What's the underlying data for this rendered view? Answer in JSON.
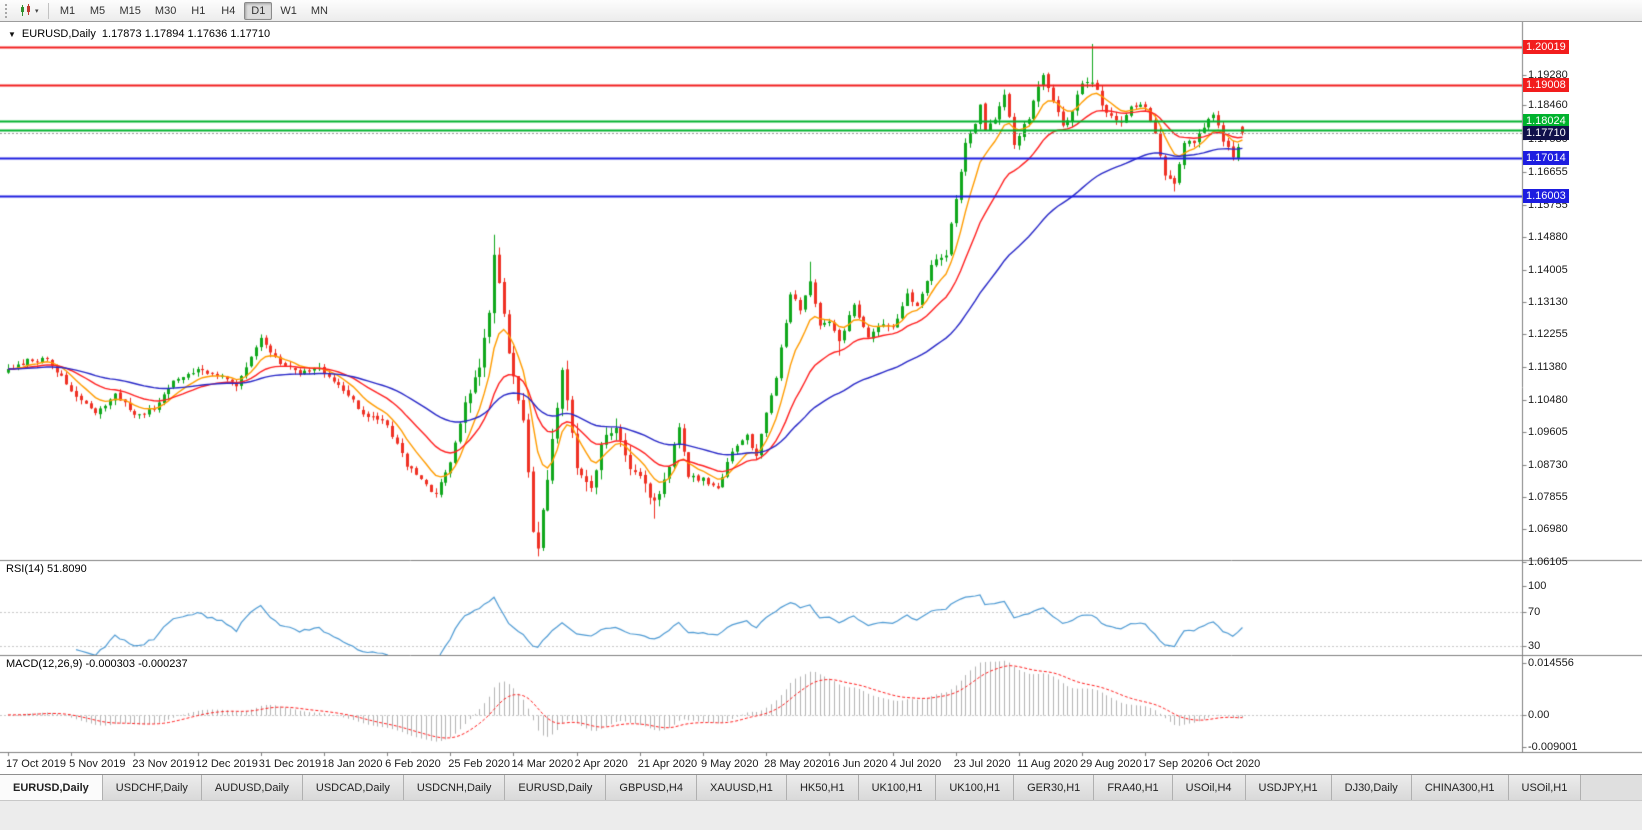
{
  "toolbar": {
    "periods": [
      "M1",
      "M5",
      "M15",
      "M30",
      "H1",
      "H4",
      "D1",
      "W1",
      "MN"
    ],
    "active_period": "D1"
  },
  "chart": {
    "symbol_period": "EURUSD,Daily",
    "ohlc_line": "1.17873 1.17894 1.17636 1.17710"
  },
  "chart_data": {
    "type": "candlestick",
    "symbol": "EURUSD",
    "timeframe": "Daily",
    "open": 1.17873,
    "high": 1.17894,
    "low": 1.17636,
    "close": 1.1771,
    "candle_count": 255,
    "price_anchors": [
      [
        0,
        1.113
      ],
      [
        4,
        1.1155
      ],
      [
        8,
        1.116
      ],
      [
        13,
        1.1075
      ],
      [
        18,
        1.101
      ],
      [
        22,
        1.1065
      ],
      [
        26,
        1.1012
      ],
      [
        30,
        1.102
      ],
      [
        34,
        1.11
      ],
      [
        39,
        1.113
      ],
      [
        43,
        1.1118
      ],
      [
        47,
        1.1085
      ],
      [
        52,
        1.1212
      ],
      [
        55,
        1.116
      ],
      [
        60,
        1.1118
      ],
      [
        64,
        1.1135
      ],
      [
        68,
        1.109
      ],
      [
        73,
        1.1012
      ],
      [
        78,
        1.0982
      ],
      [
        82,
        1.0872
      ],
      [
        88,
        1.079
      ],
      [
        91,
        1.0882
      ],
      [
        94,
        1.103
      ],
      [
        97,
        1.1135
      ],
      [
        99,
        1.1284
      ],
      [
        100,
        1.1448
      ],
      [
        102,
        1.127
      ],
      [
        104,
        1.1105
      ],
      [
        106,
        1.0995
      ],
      [
        108,
        1.07
      ],
      [
        109,
        1.0655
      ],
      [
        111,
        1.0832
      ],
      [
        113,
        1.1035
      ],
      [
        114,
        1.114
      ],
      [
        117,
        1.0862
      ],
      [
        120,
        1.0802
      ],
      [
        122,
        1.093
      ],
      [
        125,
        1.0978
      ],
      [
        128,
        1.0872
      ],
      [
        130,
        1.0842
      ],
      [
        133,
        1.0772
      ],
      [
        136,
        1.0872
      ],
      [
        138,
        1.0978
      ],
      [
        140,
        1.0843
      ],
      [
        143,
        1.0832
      ],
      [
        146,
        1.0812
      ],
      [
        149,
        1.0912
      ],
      [
        152,
        1.0952
      ],
      [
        154,
        1.0896
      ],
      [
        156,
        1.101
      ],
      [
        158,
        1.111
      ],
      [
        161,
        1.1337
      ],
      [
        163,
        1.1295
      ],
      [
        165,
        1.1373
      ],
      [
        167,
        1.1255
      ],
      [
        169,
        1.1265
      ],
      [
        171,
        1.1205
      ],
      [
        174,
        1.1305
      ],
      [
        177,
        1.1218
      ],
      [
        180,
        1.125
      ],
      [
        182,
        1.1248
      ],
      [
        185,
        1.133
      ],
      [
        187,
        1.13
      ],
      [
        190,
        1.141
      ],
      [
        193,
        1.1445
      ],
      [
        195,
        1.1595
      ],
      [
        197,
        1.175
      ],
      [
        199,
        1.179
      ],
      [
        200,
        1.1845
      ],
      [
        201,
        1.1778
      ],
      [
        203,
        1.18
      ],
      [
        205,
        1.1876
      ],
      [
        207,
        1.1738
      ],
      [
        210,
        1.1813
      ],
      [
        213,
        1.193
      ],
      [
        215,
        1.1855
      ],
      [
        217,
        1.179
      ],
      [
        219,
        1.1832
      ],
      [
        221,
        1.1903
      ],
      [
        223,
        1.1911
      ],
      [
        225,
        1.185
      ],
      [
        227,
        1.1815
      ],
      [
        229,
        1.1801
      ],
      [
        231,
        1.1846
      ],
      [
        234,
        1.1845
      ],
      [
        236,
        1.1772
      ],
      [
        238,
        1.166
      ],
      [
        240,
        1.163
      ],
      [
        242,
        1.1742
      ],
      [
        244,
        1.1748
      ],
      [
        246,
        1.1784
      ],
      [
        248,
        1.1826
      ],
      [
        250,
        1.1745
      ],
      [
        252,
        1.1708
      ],
      [
        254,
        1.1771
      ]
    ],
    "noise_profile": [
      {
        "from": 0,
        "to": 93,
        "amp": 0.0016
      },
      {
        "from": 94,
        "to": 135,
        "amp": 0.0034
      },
      {
        "from": 136,
        "to": 178,
        "amp": 0.0016
      },
      {
        "from": 179,
        "to": 254,
        "amp": 0.0019
      }
    ],
    "wick_extremes": [
      {
        "day": 100,
        "high": 1.1495
      },
      {
        "day": 109,
        "low": 1.0625
      },
      {
        "day": 133,
        "low": 1.0727
      },
      {
        "day": 165,
        "high": 1.1422
      },
      {
        "day": 171,
        "low": 1.1168
      },
      {
        "day": 223,
        "high": 1.2011
      },
      {
        "day": 240,
        "low": 1.1612
      }
    ],
    "y_axis_ticks": [
      "1.19280",
      "1.18460",
      "1.17530",
      "1.16655",
      "1.15755",
      "1.14880",
      "1.14005",
      "1.13130",
      "1.12255",
      "1.11380",
      "1.10480",
      "1.09605",
      "1.08730",
      "1.07855",
      "1.06980",
      "1.06105"
    ],
    "x_axis_dates": [
      "17 Oct 2019",
      "5 Nov 2019",
      "23 Nov 2019",
      "12 Dec 2019",
      "31 Dec 2019",
      "18 Jan 2020",
      "6 Feb 2020",
      "25 Feb 2020",
      "14 Mar 2020",
      "2 Apr 2020",
      "21 Apr 2020",
      "9 May 2020",
      "28 May 2020",
      "16 Jun 2020",
      "4 Jul 2020",
      "23 Jul 2020",
      "11 Aug 2020",
      "29 Aug 2020",
      "17 Sep 2020",
      "6 Oct 2020"
    ],
    "horizontal_lines": [
      {
        "price": 1.20019,
        "color": "#f21d1d",
        "label": "1.20019"
      },
      {
        "price": 1.19008,
        "color": "#f21d1d",
        "label": "1.19008"
      },
      {
        "price": 1.18024,
        "color": "#00b22d",
        "label": "1.18024"
      },
      {
        "price": 1.1779,
        "color": "#00b22d",
        "label": ""
      },
      {
        "price": 1.17014,
        "color": "#1d1de0",
        "label": "1.17014"
      },
      {
        "price": 1.16003,
        "color": "#1d1de0",
        "label": "1.16003"
      }
    ],
    "bid": {
      "price": 1.1771,
      "label": "1.17710",
      "tag_color": "#10104a"
    },
    "candle_colors": {
      "up": "#10a81c",
      "down": "#ef3124"
    },
    "moving_averages": [
      {
        "period": 8,
        "color": "#ff9c00"
      },
      {
        "period": 20,
        "color": "#ff2020"
      },
      {
        "period": 50,
        "color": "#2828c8"
      }
    ],
    "rsi": {
      "label": "RSI(14)",
      "value_text": "51.8090",
      "period": 14,
      "levels": [
        100,
        70,
        30
      ],
      "line_color": "#4f9bd4"
    },
    "macd": {
      "label": "MACD(12,26,9)",
      "values_text": "-0.000303 -0.000237",
      "fast": 12,
      "slow": 26,
      "signal": 9,
      "scale_labels": [
        "0.014556",
        "0.00",
        "-0.009001"
      ],
      "histogram_color": "#b4b4b4",
      "signal_color": "#ff2020"
    }
  },
  "tabs": {
    "items": [
      "EURUSD,Daily",
      "USDCHF,Daily",
      "AUDUSD,Daily",
      "USDCAD,Daily",
      "USDCNH,Daily",
      "EURUSD,Daily",
      "GBPUSD,H4",
      "XAUUSD,H1",
      "HK50,H1",
      "UK100,H1",
      "UK100,H1",
      "GER30,H1",
      "FRA40,H1",
      "USOil,H4",
      "USDJPY,H1",
      "DJ30,Daily",
      "CHINA300,H1",
      "USOil,H1"
    ],
    "active_index": 0
  }
}
